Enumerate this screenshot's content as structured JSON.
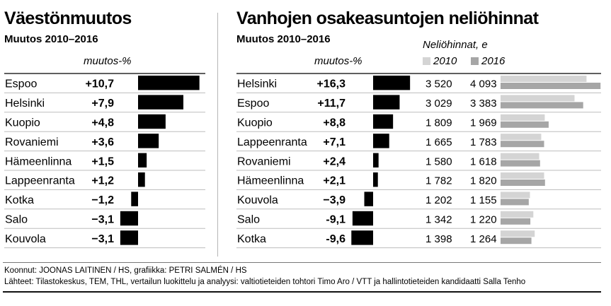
{
  "left": {
    "title": "Väestönmuutos",
    "subtitle": "Muutos 2010–2016",
    "value_header": "muutos-%"
  },
  "right": {
    "title": "Vanhojen osakeasuntojen neliöhinnat",
    "subtitle": "Muutos 2010–2016",
    "value_header": "muutos-%",
    "price_header": "Neliöhinnat, e",
    "legend": [
      {
        "label": "2010",
        "color": "#d4d4d4"
      },
      {
        "label": "2016",
        "color": "#a6a6a6"
      }
    ]
  },
  "footer": {
    "line1": "Koonnut: JOONAS LAITINEN / HS, grafiikka: PETRI SALMÉN / HS",
    "line2": "Lähteet: Tilastokeskus, TEM, THL, vertailun luokittelu ja analyysi: valtiotieteiden tohtori Timo Aro / VTT ja hallintotieteiden kandidaatti Salla Tenho"
  },
  "colors": {
    "bar": "#000000",
    "price2010": "#d4d4d4",
    "price2016": "#a6a6a6",
    "row_rule": "#bdbdbd"
  },
  "chart_data": [
    {
      "type": "bar",
      "title": "Väestönmuutos",
      "subtitle": "Muutos 2010–2016",
      "value_label": "muutos-%",
      "categories": [
        "Espoo",
        "Helsinki",
        "Kuopio",
        "Rovaniemi",
        "Hämeenlinna",
        "Lappeenranta",
        "Kotka",
        "Salo",
        "Kouvola"
      ],
      "values": [
        10.7,
        7.9,
        4.8,
        3.6,
        1.5,
        1.2,
        -1.2,
        -3.1,
        -3.1
      ],
      "value_labels": [
        "+10,7",
        "+7,9",
        "+4,8",
        "+3,6",
        "+1,5",
        "+1,2",
        "−1,2",
        "−3,1",
        "−3,1"
      ]
    },
    {
      "type": "bar",
      "title": "Vanhojen osakeasuntojen neliöhinnat",
      "subtitle": "Muutos 2010–2016",
      "value_label": "muutos-%",
      "categories": [
        "Helsinki",
        "Espoo",
        "Kuopio",
        "Lappeenranta",
        "Rovaniemi",
        "Hämeenlinna",
        "Kouvola",
        "Salo",
        "Kotka"
      ],
      "values": [
        16.3,
        11.7,
        8.8,
        7.1,
        2.4,
        2.1,
        -3.9,
        -9.1,
        -9.6
      ],
      "value_labels": [
        "+16,3",
        "+11,7",
        "+8,8",
        "+7,1",
        "+2,4",
        "+2,1",
        "−3,9",
        "-9,1",
        "-9,6"
      ]
    },
    {
      "type": "bar",
      "title": "Neliöhinnat, e",
      "categories": [
        "Helsinki",
        "Espoo",
        "Kuopio",
        "Lappeenranta",
        "Rovaniemi",
        "Hämeenlinna",
        "Kouvola",
        "Salo",
        "Kotka"
      ],
      "series": [
        {
          "name": "2010",
          "values": [
            3520,
            3029,
            1809,
            1665,
            1580,
            1782,
            1202,
            1342,
            1398
          ],
          "labels": [
            "3 520",
            "3 029",
            "1 809",
            "1 665",
            "1 580",
            "1 782",
            "1 202",
            "1 342",
            "1 398"
          ]
        },
        {
          "name": "2016",
          "values": [
            4093,
            3383,
            1969,
            1783,
            1618,
            1820,
            1155,
            1220,
            1264
          ],
          "labels": [
            "4 093",
            "3 383",
            "1 969",
            "1 783",
            "1 618",
            "1 820",
            "1 155",
            "1 220",
            "1 264"
          ]
        }
      ]
    }
  ]
}
